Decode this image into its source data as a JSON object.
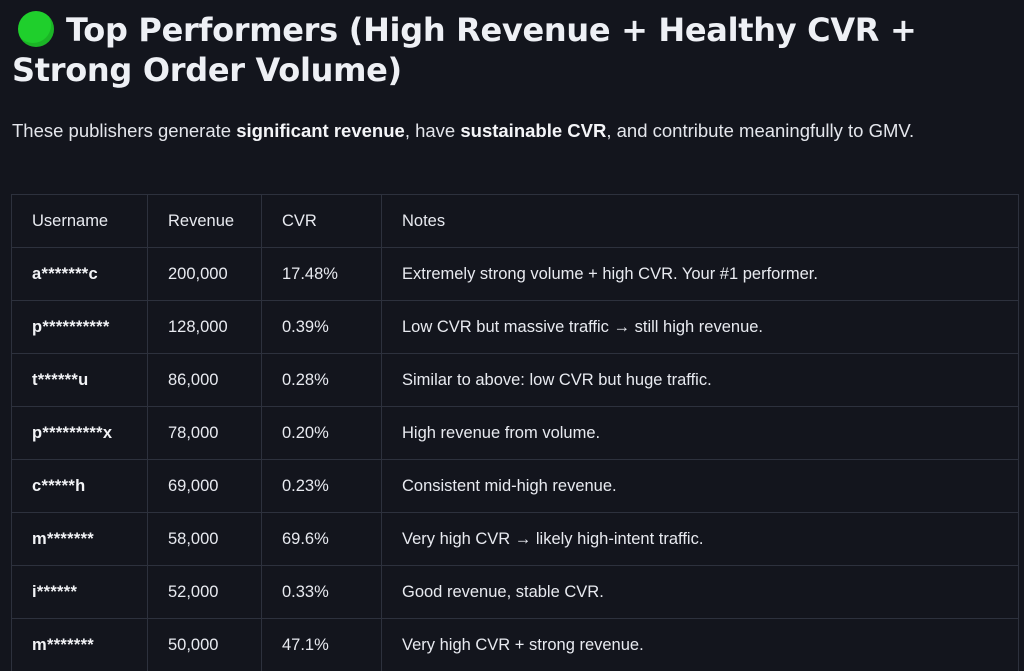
{
  "heading": {
    "icon": "green-circle-icon",
    "icon_color": "#1fcf2c",
    "text": "Top Performers (High Revenue + Healthy CVR + Strong Order Volume)"
  },
  "intro": {
    "part1": "These publishers generate ",
    "bold1": "significant revenue",
    "part2": ", have ",
    "bold2": "sustainable CVR",
    "part3": ", and contribute meaningfully to GMV."
  },
  "table": {
    "headers": [
      "Username",
      "Revenue",
      "CVR",
      "Notes"
    ],
    "rows": [
      {
        "username": "a*******c",
        "revenue": "200,000",
        "cvr": "17.48%",
        "notes": "Extremely strong volume + high CVR. Your #1 performer."
      },
      {
        "username": "p**********",
        "revenue": "128,000",
        "cvr": "0.39%",
        "notes": "Low CVR but massive traffic → still high revenue."
      },
      {
        "username": "t******u",
        "revenue": "86,000",
        "cvr": "0.28%",
        "notes": "Similar to above: low CVR but huge traffic."
      },
      {
        "username": "p*********x",
        "revenue": "78,000",
        "cvr": "0.20%",
        "notes": "High revenue from volume."
      },
      {
        "username": "c*****h",
        "revenue": "69,000",
        "cvr": "0.23%",
        "notes": "Consistent mid-high revenue."
      },
      {
        "username": "m*******",
        "revenue": "58,000",
        "cvr": "69.6%",
        "notes": "Very high CVR → likely high-intent traffic."
      },
      {
        "username": "i******",
        "revenue": "52,000",
        "cvr": "0.33%",
        "notes": "Good revenue, stable CVR."
      },
      {
        "username": "m*******",
        "revenue": "50,000",
        "cvr": "47.1%",
        "notes": "Very high CVR + strong revenue."
      }
    ]
  }
}
